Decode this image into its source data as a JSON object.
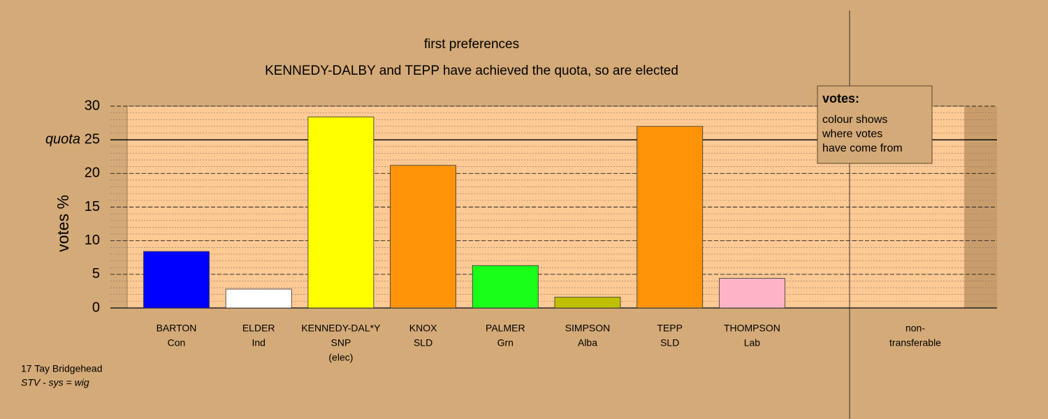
{
  "chart_data": {
    "type": "bar",
    "title": "first preferences",
    "subtitle": "KENNEDY-DALBY and TEPP have achieved the quota, so are elected",
    "y_label": "votes %",
    "categories": [
      [
        "BARTON",
        "Con"
      ],
      [
        "ELDER",
        "Ind"
      ],
      [
        "KENNEDY-DAL*Y",
        "SNP",
        "(elec)"
      ],
      [
        "KNOX",
        "SLD"
      ],
      [
        "PALMER",
        "Grn"
      ],
      [
        "SIMPSON",
        "Alba"
      ],
      [
        "TEPP",
        "SLD"
      ],
      [
        "THOMPSON",
        "Lab"
      ],
      [
        "non-",
        "transferable"
      ]
    ],
    "values": [
      8.4,
      2.8,
      28.4,
      21.2,
      6.3,
      1.6,
      27.0,
      4.4,
      null
    ],
    "colors": [
      "#0000ff",
      "#ffffff",
      "#ffff00",
      "#ff9408",
      "#1aff1a",
      "#bfbf00",
      "#ff9408",
      "#ffb3c6",
      null
    ],
    "ylim": [
      0,
      30
    ],
    "yticks": [
      0,
      5,
      10,
      15,
      20,
      25,
      30
    ],
    "quota": 25,
    "quota_label": "quota",
    "legend": {
      "title": "votes:",
      "lines": [
        "colour shows",
        "where votes",
        "have come from"
      ]
    },
    "footer": [
      "17 Tay Bridgehead",
      "STV - sys = wig"
    ]
  }
}
